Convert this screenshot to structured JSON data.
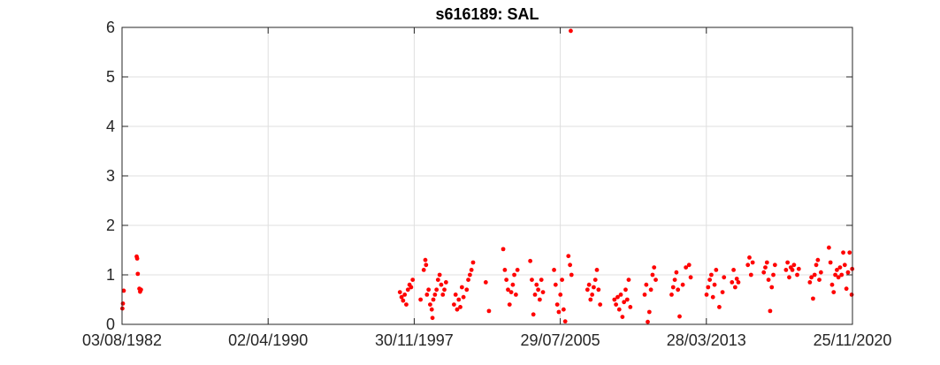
{
  "chart_data": {
    "type": "scatter",
    "title": "s616189: SAL",
    "xlabel": "",
    "ylabel": "",
    "x_is_date": true,
    "xlim": [
      "1982-08-03",
      "2020-11-25"
    ],
    "ylim": [
      0,
      6
    ],
    "xticks": [
      "1982-08-03",
      "1990-04-02",
      "1997-11-30",
      "2005-07-29",
      "2013-03-28",
      "2020-11-25"
    ],
    "xtick_labels": [
      "03/08/1982",
      "02/04/1990",
      "30/11/1997",
      "29/07/2005",
      "28/03/2013",
      "25/11/2020"
    ],
    "yticks": [
      0,
      1,
      2,
      3,
      4,
      5,
      6
    ],
    "ytick_labels": [
      "0",
      "1",
      "2",
      "3",
      "4",
      "5",
      "6"
    ],
    "grid": true,
    "legend": "none",
    "marker_color": "#ff0000",
    "series": [
      {
        "values": [
          [
            "1982-08-10",
            0.32
          ],
          [
            "1982-08-20",
            0.42
          ],
          [
            "1982-09-05",
            0.68
          ],
          [
            "1983-05-10",
            1.37
          ],
          [
            "1983-05-20",
            1.33
          ],
          [
            "1983-06-01",
            1.02
          ],
          [
            "1983-07-01",
            0.72
          ],
          [
            "1983-07-15",
            0.66
          ],
          [
            "1983-08-01",
            0.7
          ],
          [
            "1997-03-01",
            0.65
          ],
          [
            "1997-04-01",
            0.55
          ],
          [
            "1997-05-01",
            0.48
          ],
          [
            "1997-06-01",
            0.6
          ],
          [
            "1997-07-01",
            0.4
          ],
          [
            "1997-08-01",
            0.7
          ],
          [
            "1997-09-01",
            0.8
          ],
          [
            "1997-10-01",
            0.75
          ],
          [
            "1997-11-01",
            0.9
          ],
          [
            "1998-04-01",
            0.5
          ],
          [
            "1998-06-01",
            1.1
          ],
          [
            "1998-07-01",
            1.3
          ],
          [
            "1998-07-15",
            1.2
          ],
          [
            "1998-08-01",
            0.6
          ],
          [
            "1998-09-01",
            0.7
          ],
          [
            "1998-10-01",
            0.4
          ],
          [
            "1998-11-01",
            0.3
          ],
          [
            "1998-11-15",
            0.13
          ],
          [
            "1998-12-01",
            0.5
          ],
          [
            "1999-01-01",
            0.6
          ],
          [
            "1999-02-01",
            0.7
          ],
          [
            "1999-03-01",
            0.9
          ],
          [
            "1999-04-01",
            1.0
          ],
          [
            "1999-05-01",
            0.8
          ],
          [
            "1999-06-01",
            0.6
          ],
          [
            "1999-07-01",
            0.7
          ],
          [
            "1999-08-01",
            0.85
          ],
          [
            "2000-01-01",
            0.4
          ],
          [
            "2000-02-01",
            0.6
          ],
          [
            "2000-03-01",
            0.3
          ],
          [
            "2000-04-01",
            0.5
          ],
          [
            "2000-05-01",
            0.35
          ],
          [
            "2000-06-01",
            0.75
          ],
          [
            "2000-07-01",
            0.55
          ],
          [
            "2000-09-01",
            0.7
          ],
          [
            "2000-10-01",
            0.9
          ],
          [
            "2000-11-01",
            1.0
          ],
          [
            "2000-12-01",
            1.1
          ],
          [
            "2001-01-01",
            1.25
          ],
          [
            "2001-09-01",
            0.85
          ],
          [
            "2001-11-01",
            0.27
          ],
          [
            "2002-08-01",
            1.52
          ],
          [
            "2002-09-01",
            1.1
          ],
          [
            "2002-10-01",
            0.9
          ],
          [
            "2002-11-01",
            0.7
          ],
          [
            "2002-12-01",
            0.4
          ],
          [
            "2003-01-01",
            0.65
          ],
          [
            "2003-02-01",
            0.8
          ],
          [
            "2003-03-01",
            1.0
          ],
          [
            "2003-04-01",
            0.6
          ],
          [
            "2003-05-01",
            1.1
          ],
          [
            "2004-01-01",
            1.28
          ],
          [
            "2004-02-01",
            0.9
          ],
          [
            "2004-03-01",
            0.2
          ],
          [
            "2004-04-01",
            0.6
          ],
          [
            "2004-05-01",
            0.8
          ],
          [
            "2004-06-01",
            0.7
          ],
          [
            "2004-07-01",
            0.5
          ],
          [
            "2004-08-01",
            0.9
          ],
          [
            "2004-09-01",
            0.65
          ],
          [
            "2005-04-01",
            1.1
          ],
          [
            "2005-05-01",
            0.8
          ],
          [
            "2005-06-01",
            0.4
          ],
          [
            "2005-07-01",
            0.25
          ],
          [
            "2005-08-01",
            0.6
          ],
          [
            "2005-09-01",
            0.9
          ],
          [
            "2005-10-01",
            0.3
          ],
          [
            "2005-11-01",
            0.06
          ],
          [
            "2006-01-01",
            1.38
          ],
          [
            "2006-02-01",
            1.2
          ],
          [
            "2006-03-01",
            1.0
          ],
          [
            "2006-02-15",
            5.93
          ],
          [
            "2007-01-01",
            0.7
          ],
          [
            "2007-02-01",
            0.8
          ],
          [
            "2007-03-01",
            0.5
          ],
          [
            "2007-04-01",
            0.6
          ],
          [
            "2007-05-01",
            0.75
          ],
          [
            "2007-06-01",
            0.9
          ],
          [
            "2007-07-01",
            1.1
          ],
          [
            "2007-08-01",
            0.7
          ],
          [
            "2007-09-01",
            0.4
          ],
          [
            "2008-06-01",
            0.5
          ],
          [
            "2008-07-01",
            0.4
          ],
          [
            "2008-08-01",
            0.55
          ],
          [
            "2008-09-01",
            0.3
          ],
          [
            "2008-10-01",
            0.6
          ],
          [
            "2008-11-01",
            0.15
          ],
          [
            "2008-12-01",
            0.45
          ],
          [
            "2009-01-01",
            0.7
          ],
          [
            "2009-02-01",
            0.5
          ],
          [
            "2009-03-01",
            0.9
          ],
          [
            "2009-04-01",
            0.35
          ],
          [
            "2010-01-01",
            0.6
          ],
          [
            "2010-02-01",
            0.8
          ],
          [
            "2010-03-01",
            0.05
          ],
          [
            "2010-04-01",
            0.25
          ],
          [
            "2010-05-01",
            0.7
          ],
          [
            "2010-06-01",
            1.0
          ],
          [
            "2010-07-01",
            1.15
          ],
          [
            "2010-08-01",
            0.9
          ],
          [
            "2011-06-01",
            0.6
          ],
          [
            "2011-07-01",
            0.75
          ],
          [
            "2011-08-01",
            0.9
          ],
          [
            "2011-09-01",
            1.05
          ],
          [
            "2011-10-01",
            0.7
          ],
          [
            "2011-11-01",
            0.16
          ],
          [
            "2012-01-01",
            0.8
          ],
          [
            "2012-03-01",
            1.15
          ],
          [
            "2012-05-01",
            1.2
          ],
          [
            "2012-06-01",
            0.95
          ],
          [
            "2013-04-01",
            0.6
          ],
          [
            "2013-05-01",
            0.75
          ],
          [
            "2013-06-01",
            0.9
          ],
          [
            "2013-07-01",
            1.0
          ],
          [
            "2013-08-01",
            0.55
          ],
          [
            "2013-09-01",
            0.8
          ],
          [
            "2013-10-01",
            1.1
          ],
          [
            "2013-12-01",
            0.35
          ],
          [
            "2014-02-01",
            0.65
          ],
          [
            "2014-03-01",
            0.95
          ],
          [
            "2014-08-01",
            0.85
          ],
          [
            "2014-09-01",
            1.1
          ],
          [
            "2014-10-01",
            0.75
          ],
          [
            "2014-11-01",
            0.92
          ],
          [
            "2014-12-01",
            0.85
          ],
          [
            "2015-06-01",
            1.2
          ],
          [
            "2015-07-01",
            1.35
          ],
          [
            "2015-08-01",
            1.0
          ],
          [
            "2015-09-01",
            1.25
          ],
          [
            "2016-04-01",
            1.05
          ],
          [
            "2016-05-01",
            1.15
          ],
          [
            "2016-06-01",
            1.25
          ],
          [
            "2016-07-01",
            0.9
          ],
          [
            "2016-08-01",
            0.27
          ],
          [
            "2016-09-01",
            0.75
          ],
          [
            "2016-10-01",
            1.0
          ],
          [
            "2016-11-01",
            1.2
          ],
          [
            "2017-06-01",
            1.1
          ],
          [
            "2017-07-01",
            1.25
          ],
          [
            "2017-08-01",
            0.95
          ],
          [
            "2017-09-01",
            1.15
          ],
          [
            "2017-10-01",
            1.1
          ],
          [
            "2017-11-01",
            1.2
          ],
          [
            "2018-01-01",
            1.0
          ],
          [
            "2018-02-01",
            1.12
          ],
          [
            "2018-09-01",
            0.85
          ],
          [
            "2018-10-01",
            0.95
          ],
          [
            "2018-11-01",
            0.52
          ],
          [
            "2018-12-01",
            1.0
          ],
          [
            "2019-01-01",
            1.2
          ],
          [
            "2019-02-01",
            1.3
          ],
          [
            "2019-03-01",
            0.9
          ],
          [
            "2019-04-01",
            1.05
          ],
          [
            "2019-09-01",
            1.55
          ],
          [
            "2019-10-01",
            1.25
          ],
          [
            "2019-11-01",
            0.8
          ],
          [
            "2019-12-01",
            0.65
          ],
          [
            "2020-01-01",
            1.0
          ],
          [
            "2020-02-01",
            1.1
          ],
          [
            "2020-03-01",
            0.95
          ],
          [
            "2020-04-01",
            1.15
          ],
          [
            "2020-05-01",
            1.0
          ],
          [
            "2020-06-01",
            1.45
          ],
          [
            "2020-07-01",
            1.2
          ],
          [
            "2020-08-01",
            0.72
          ],
          [
            "2020-09-01",
            1.05
          ],
          [
            "2020-10-01",
            1.45
          ],
          [
            "2020-11-10",
            0.6
          ],
          [
            "2020-11-20",
            1.12
          ]
        ]
      }
    ]
  }
}
